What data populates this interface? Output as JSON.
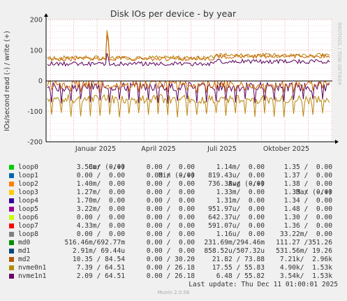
{
  "chart_data": {
    "type": "line",
    "title": "Disk IOs per device - by year",
    "ylabel": "IOs/second read (-) / write (+)",
    "watermark": "RRDTOOL / TOBI OETIKER",
    "ylim": [
      -200,
      200
    ],
    "yticks": [
      200,
      100,
      0,
      -100,
      -200
    ],
    "x_tick_labels": [
      "Januar 2025",
      "April 2025",
      "Juli 2025",
      "Oktober 2025"
    ],
    "grid": true,
    "series": [
      {
        "name": "nvme0n1",
        "color": "#b8860b",
        "write_mean": 75,
        "write_spike": 165,
        "read_mean": -60,
        "read_min": -120
      },
      {
        "name": "nvme1n1",
        "color": "#5a005a",
        "write_mean": 55,
        "write_spike": 90,
        "read_mean": -20,
        "read_min": -75
      },
      {
        "name": "md2",
        "color": "#cc6600",
        "write_mean": 72,
        "write_spike": 150,
        "read_mean": -10,
        "read_min": -40
      }
    ]
  },
  "legend": {
    "headers": {
      "cur": "Cur (-/+)",
      "min": "Min (-/+)",
      "avg": "Avg (-/+)",
      "max": "Max (-/+)"
    },
    "rows": [
      {
        "name": "loop0",
        "color": "#00cc00",
        "cur": "3.58m/  0.00",
        "min": "0.00 /  0.00",
        "avg": "1.14m/  0.00",
        "max": "1.35 /  0.00"
      },
      {
        "name": "loop1",
        "color": "#0066b3",
        "cur": "0.00 /  0.00",
        "min": "0.00 /  0.00",
        "avg": "819.43u/  0.00",
        "max": "1.37 /  0.00"
      },
      {
        "name": "loop2",
        "color": "#ff8000",
        "cur": "1.40m/  0.00",
        "min": "0.00 /  0.00",
        "avg": "736.38u/  0.00",
        "max": "1.38 /  0.00"
      },
      {
        "name": "loop3",
        "color": "#ffcc00",
        "cur": "1.27m/  0.00",
        "min": "0.00 /  0.00",
        "avg": "1.33m/  0.00",
        "max": "1.33 /  0.00"
      },
      {
        "name": "loop4",
        "color": "#330099",
        "cur": "1.70m/  0.00",
        "min": "0.00 /  0.00",
        "avg": "1.31m/  0.00",
        "max": "1.34 /  0.00"
      },
      {
        "name": "loop5",
        "color": "#990099",
        "cur": "3.22m/  0.00",
        "min": "0.00 /  0.00",
        "avg": "951.97u/  0.00",
        "max": "1.48 /  0.00"
      },
      {
        "name": "loop6",
        "color": "#ccff00",
        "cur": "0.00 /  0.00",
        "min": "0.00 /  0.00",
        "avg": "642.37u/  0.00",
        "max": "1.30 /  0.00"
      },
      {
        "name": "loop7",
        "color": "#ff0000",
        "cur": "4.33m/  0.00",
        "min": "0.00 /  0.00",
        "avg": "591.07u/  0.00",
        "max": "1.36 /  0.00"
      },
      {
        "name": "loop8",
        "color": "#808080",
        "cur": "0.00 /  0.00",
        "min": "0.00 /  0.00",
        "avg": "1.16u/  0.00",
        "max": "33.22m/  0.00"
      },
      {
        "name": "md0",
        "color": "#008f00",
        "cur": "516.46m/692.77m",
        "min": "0.00 /  0.00",
        "avg": "231.69m/294.46m",
        "max": "111.27 /351.26"
      },
      {
        "name": "md1",
        "color": "#00487d",
        "cur": "2.91m/ 69.44u",
        "min": "0.00 /  0.00",
        "avg": "858.52u/507.32u",
        "max": "531.56m/ 19.26"
      },
      {
        "name": "md2",
        "color": "#b35a00",
        "cur": "10.35 / 84.54",
        "min": "0.00 / 30.20",
        "avg": "21.82 / 73.88",
        "max": "7.21k/  2.96k"
      },
      {
        "name": "nvme0n1",
        "color": "#b38f00",
        "cur": "7.39 / 64.51",
        "min": "0.00 / 26.18",
        "avg": "17.55 / 55.83",
        "max": "4.90k/  1.53k"
      },
      {
        "name": "nvme1n1",
        "color": "#6b006b",
        "cur": "2.09 / 64.51",
        "min": "0.00 / 26.18",
        "avg": "6.48 / 55.82",
        "max": "3.54k/  1.53k"
      }
    ]
  },
  "last_update": "Last update: Thu Dec 11 01:00:01 2025",
  "footer": "Munin 2.0.56"
}
